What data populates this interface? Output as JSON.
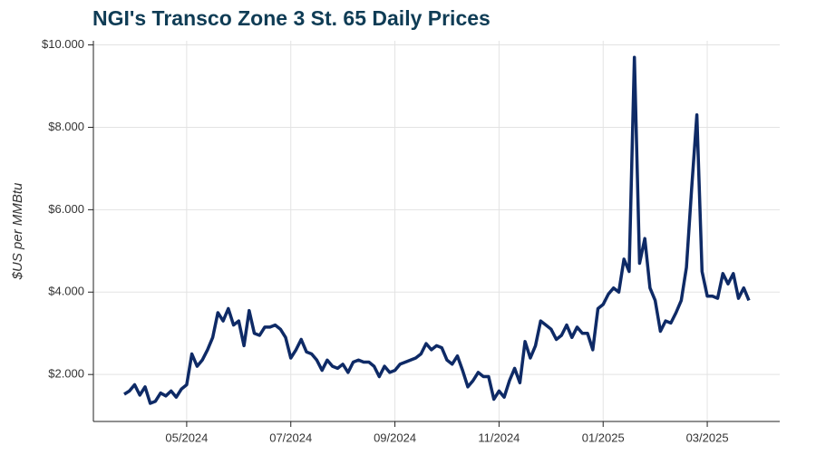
{
  "chart_data": {
    "type": "line",
    "title": "NGI's Transco Zone 3 St. 65 Daily Prices",
    "y_label": "$US per MMBtu",
    "categories": [
      null,
      null,
      null,
      null,
      null,
      null,
      null,
      null,
      null,
      null,
      null,
      null,
      "05/2024",
      null,
      null,
      null,
      null,
      null,
      null,
      null,
      null,
      null,
      null,
      null,
      null,
      null,
      null,
      null,
      null,
      null,
      null,
      null,
      "07/2024",
      null,
      null,
      null,
      null,
      null,
      null,
      null,
      null,
      null,
      null,
      null,
      null,
      null,
      null,
      null,
      null,
      null,
      null,
      null,
      "09/2024",
      null,
      null,
      null,
      null,
      null,
      null,
      null,
      null,
      null,
      null,
      null,
      null,
      null,
      null,
      null,
      null,
      null,
      null,
      null,
      "11/2024",
      null,
      null,
      null,
      null,
      null,
      null,
      null,
      null,
      null,
      null,
      null,
      null,
      null,
      null,
      null,
      null,
      null,
      null,
      null,
      "01/2025",
      null,
      null,
      null,
      null,
      null,
      null,
      null,
      null,
      null,
      null,
      null,
      null,
      null,
      null,
      null,
      null,
      null,
      null,
      null,
      "03/2025",
      null,
      null,
      null,
      null,
      null,
      null,
      null,
      null
    ],
    "values": [
      1.52,
      1.6,
      1.75,
      1.5,
      1.7,
      1.3,
      1.35,
      1.55,
      1.48,
      1.6,
      1.45,
      1.65,
      1.75,
      2.5,
      2.2,
      2.35,
      2.6,
      2.9,
      3.5,
      3.3,
      3.6,
      3.2,
      3.3,
      2.7,
      3.55,
      3.0,
      2.95,
      3.15,
      3.15,
      3.2,
      3.1,
      2.9,
      2.4,
      2.6,
      2.85,
      2.55,
      2.5,
      2.35,
      2.1,
      2.35,
      2.2,
      2.15,
      2.25,
      2.05,
      2.3,
      2.35,
      2.3,
      2.3,
      2.2,
      1.95,
      2.2,
      2.05,
      2.1,
      2.25,
      2.3,
      2.35,
      2.4,
      2.5,
      2.75,
      2.6,
      2.7,
      2.65,
      2.35,
      2.25,
      2.45,
      2.1,
      1.7,
      1.85,
      2.05,
      1.95,
      1.95,
      1.4,
      1.6,
      1.45,
      1.85,
      2.15,
      1.8,
      2.8,
      2.4,
      2.7,
      3.3,
      3.2,
      3.1,
      2.85,
      2.95,
      3.2,
      2.9,
      3.15,
      3.0,
      3.0,
      2.6,
      3.6,
      3.7,
      3.95,
      4.1,
      4.0,
      4.8,
      4.5,
      9.7,
      4.7,
      5.3,
      4.1,
      3.8,
      3.05,
      3.3,
      3.25,
      3.5,
      3.8,
      4.6,
      6.5,
      8.3,
      4.5,
      3.9,
      3.9,
      3.85,
      4.45,
      4.2,
      4.45,
      3.85,
      4.1,
      3.8
    ],
    "color": "#0e2a66",
    "ylim": [
      0.86,
      10.1
    ],
    "yticks": [
      {
        "value": 2,
        "label": "$2.000"
      },
      {
        "value": 4,
        "label": "$4.000"
      },
      {
        "value": 6,
        "label": "$6.000"
      },
      {
        "value": 8,
        "label": "$8.000"
      },
      {
        "value": 10,
        "label": "$10.000"
      }
    ],
    "grid": true
  }
}
